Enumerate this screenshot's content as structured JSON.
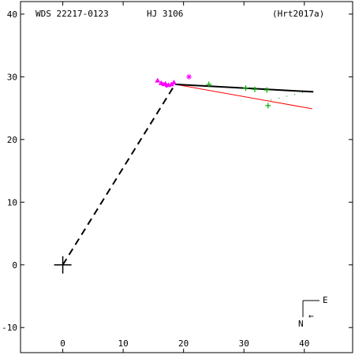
{
  "header": {
    "wds_id": "WDS 22217-0123",
    "discoverer": "HJ 3106",
    "reference": "(Hrt2017a)"
  },
  "compass": {
    "east_label": "E",
    "north_label": "N",
    "arrow_glyph": "←"
  },
  "colors": {
    "orbit": "#000000",
    "alt_orbit": "#ff0000",
    "micrometer": "#00aa00",
    "speckle": "#ff00ff",
    "origin": "#000000"
  },
  "chart_data": {
    "type": "scatter",
    "title": "",
    "xlabel": "",
    "ylabel": "",
    "xlim": [
      -7,
      48
    ],
    "ylim": [
      -14,
      42
    ],
    "x_ticks": [
      0,
      10,
      20,
      30,
      40
    ],
    "y_ticks": [
      -10,
      0,
      10,
      20,
      30,
      40
    ],
    "x_tick_labels": [
      "0",
      "10",
      "20",
      "30",
      "40"
    ],
    "y_tick_labels": [
      "-10",
      "0",
      "10",
      "20",
      "30",
      "40"
    ],
    "origin_marker": [
      0,
      0
    ],
    "node_line": {
      "from": [
        0,
        0
      ],
      "to": [
        18.6,
        28.8
      ]
    },
    "orbit_segment": [
      [
        18.6,
        28.8
      ],
      [
        41.5,
        27.6
      ]
    ],
    "alt_orbit_segment": [
      [
        18.6,
        28.8
      ],
      [
        41.3,
        24.9
      ]
    ],
    "dotted_residual": [
      [
        34.5,
        26.3
      ],
      [
        35.8,
        26.6
      ],
      [
        37.1,
        26.9
      ],
      [
        38.4,
        27.2
      ],
      [
        39.7,
        27.5
      ]
    ],
    "micrometer_points": [
      [
        24.2,
        28.8
      ],
      [
        30.3,
        28.2
      ],
      [
        31.8,
        28.0
      ],
      [
        33.8,
        27.9
      ],
      [
        34.0,
        25.4
      ]
    ],
    "speckle_triangles": [
      [
        15.7,
        29.4
      ],
      [
        16.3,
        29.0
      ],
      [
        17.0,
        28.9
      ],
      [
        17.5,
        28.7
      ],
      [
        18.0,
        28.8
      ],
      [
        18.4,
        29.1
      ]
    ],
    "speckle_circles": [
      [
        16.6,
        28.8
      ],
      [
        17.2,
        28.6
      ]
    ],
    "speckle_stars": [
      [
        20.9,
        30.0
      ]
    ]
  }
}
